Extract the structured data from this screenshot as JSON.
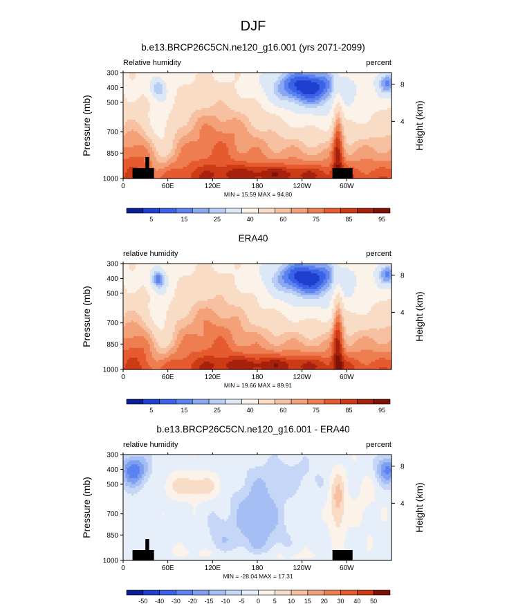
{
  "figure": {
    "title": "DJF"
  },
  "colors": {
    "rh_scale": [
      "#0a1f96",
      "#1f3fcf",
      "#3a62e6",
      "#5b82ef",
      "#8aa8f2",
      "#b7cdf6",
      "#dde8f7",
      "#fbf2ea",
      "#f9dcc6",
      "#f7c0a0",
      "#f3a178",
      "#ee7e51",
      "#e55a2e",
      "#cc3a16",
      "#a6210c",
      "#7d1208"
    ],
    "diff_scale": [
      "#0a1f96",
      "#1f3fcf",
      "#3a62e6",
      "#5b82ef",
      "#7f9eef",
      "#a5bef4",
      "#c6d6f7",
      "#e6eef9",
      "#fbf2ea",
      "#f9dcc6",
      "#f7c0a0",
      "#f3a178",
      "#ee7e51",
      "#e55a2e",
      "#cc3a16",
      "#7d1208"
    ]
  },
  "chart_data": [
    {
      "type": "heatmap",
      "title": "b.e13.BRCP26C5CN.ne120_g16.001 (yrs 2071-2099)",
      "left_label": "Relative humidity",
      "right_label": "percent",
      "xlabel": "",
      "ylabel": "Pressure (mb)",
      "y2label": "Height (km)",
      "x_ticks": [
        "0",
        "60E",
        "120E",
        "180",
        "120W",
        "60W"
      ],
      "y_ticks": [
        "300",
        "400",
        "500",
        "700",
        "850",
        "1000"
      ],
      "y2_ticks": [
        "8",
        "4"
      ],
      "minmax_text": "MIN =  15.59   MAX =  94.80",
      "colorbar_labels": [
        "5",
        "15",
        "25",
        "40",
        "60",
        "75",
        "85",
        "95"
      ],
      "scale": "rh",
      "min": 15.59,
      "max": 94.8
    },
    {
      "type": "heatmap",
      "title": "ERA40",
      "left_label": "relative humidity",
      "right_label": "percent",
      "xlabel": "",
      "ylabel": "Pressure (mb)",
      "y2label": "Height (km)",
      "x_ticks": [
        "0",
        "60E",
        "120E",
        "180",
        "120W",
        "60W"
      ],
      "y_ticks": [
        "300",
        "400",
        "500",
        "700",
        "850",
        "1000"
      ],
      "y2_ticks": [
        "8",
        "4"
      ],
      "minmax_text": "MIN =  19.66   MAX =  89.91",
      "colorbar_labels": [
        "5",
        "15",
        "25",
        "40",
        "60",
        "75",
        "85",
        "95"
      ],
      "scale": "rh",
      "min": 19.66,
      "max": 89.91
    },
    {
      "type": "heatmap",
      "title": "b.e13.BRCP26C5CN.ne120_g16.001 - ERA40",
      "left_label": "relative humidity",
      "right_label": "percent",
      "xlabel": "",
      "ylabel": "Pressure (mb)",
      "y2label": "Height (km)",
      "x_ticks": [
        "0",
        "60E",
        "120E",
        "180",
        "120W",
        "60W"
      ],
      "y_ticks": [
        "300",
        "400",
        "500",
        "700",
        "850",
        "1000"
      ],
      "y2_ticks": [
        "8",
        "4"
      ],
      "minmax_text": "MIN = -28.04   MAX =  17.31",
      "colorbar_labels": [
        "-50",
        "-40",
        "-30",
        "-20",
        "-15",
        "-10",
        "-5",
        "0",
        "5",
        "10",
        "15",
        "20",
        "30",
        "40",
        "50"
      ],
      "scale": "diff",
      "min": -28.04,
      "max": 17.31
    }
  ]
}
